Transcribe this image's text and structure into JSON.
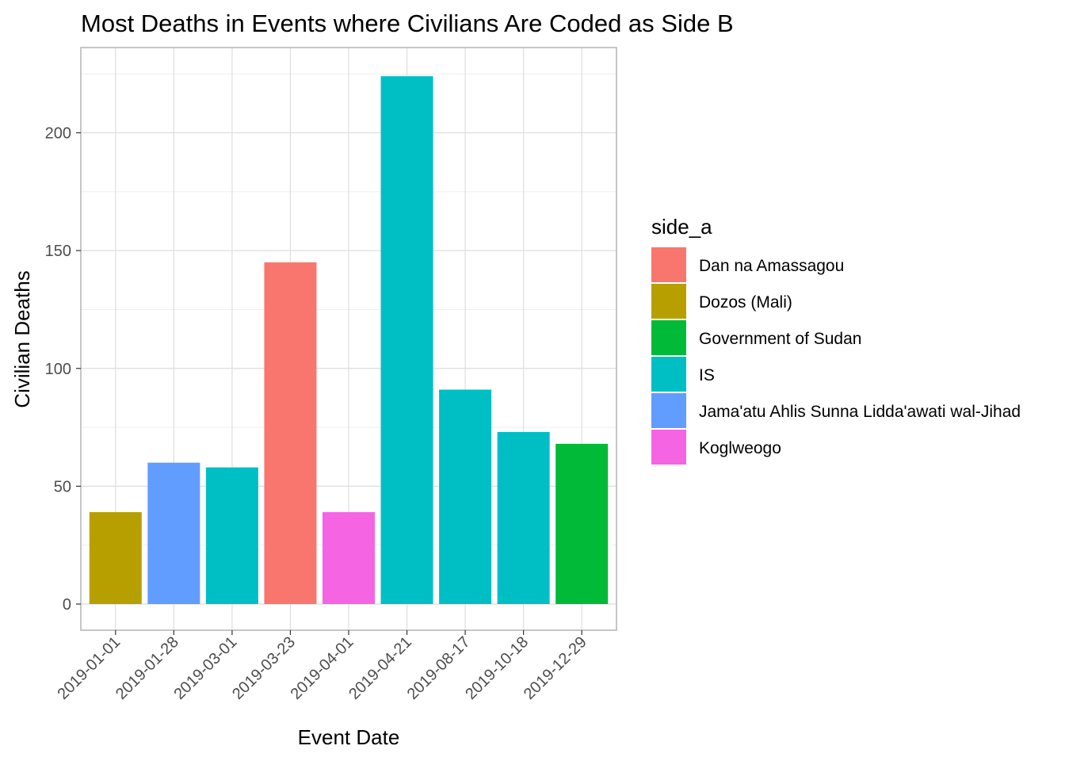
{
  "chart_data": {
    "type": "bar",
    "title": "Most Deaths in Events where Civilians Are Coded as Side B",
    "xlabel": "Event Date",
    "ylabel": "Civilian Deaths",
    "ylim": [
      -11,
      225
    ],
    "yticks": [
      0,
      50,
      100,
      150,
      200
    ],
    "grid": true,
    "legend_position": "right",
    "legend_title": "side_a",
    "categories": [
      "2019-01-01",
      "2019-01-28",
      "2019-03-01",
      "2019-03-23",
      "2019-04-01",
      "2019-04-21",
      "2019-08-17",
      "2019-10-18",
      "2019-12-29"
    ],
    "values": [
      39,
      60,
      58,
      145,
      39,
      224,
      91,
      73,
      68
    ],
    "groups": [
      "Dozos (Mali)",
      "Jama'atu Ahlis Sunna Lidda'awati wal-Jihad",
      "IS",
      "Dan na Amassagou",
      "Koglweogo",
      "IS",
      "IS",
      "IS",
      "Government of Sudan"
    ],
    "legend": [
      {
        "name": "Dan na Amassagou",
        "color": "#F8766D"
      },
      {
        "name": "Dozos (Mali)",
        "color": "#B79F00"
      },
      {
        "name": "Government of Sudan",
        "color": "#00BA38"
      },
      {
        "name": "IS",
        "color": "#00BFC4"
      },
      {
        "name": "Jama'atu Ahlis Sunna Lidda'awati wal-Jihad",
        "color": "#619CFF"
      },
      {
        "name": "Koglweogo",
        "color": "#F564E3"
      }
    ]
  }
}
